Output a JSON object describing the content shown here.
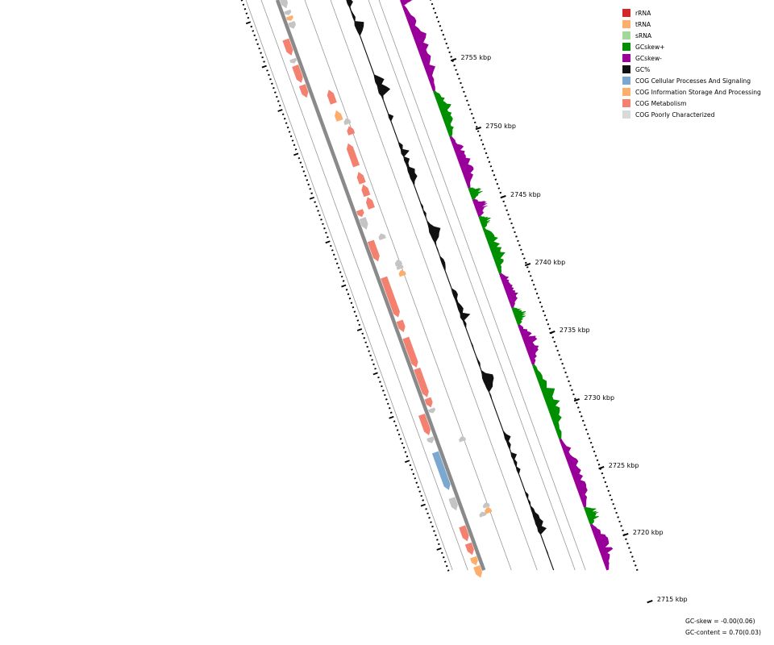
{
  "legend": [
    {
      "label": "rRNA",
      "color": "#d62728"
    },
    {
      "label": "tRNA",
      "color": "#fdae6b"
    },
    {
      "label": "sRNA",
      "color": "#a1d99b"
    },
    {
      "label": "GCskew+",
      "color": "#008f00"
    },
    {
      "label": "GCskew-",
      "color": "#990099"
    },
    {
      "label": "GC%",
      "color": "#111111"
    },
    {
      "label": "COG Cellular Processes And Signaling",
      "color": "#7ba8d1"
    },
    {
      "label": "COG Information Storage And Processing",
      "color": "#fdae6b"
    },
    {
      "label": "COG Metabolism",
      "color": "#f4806f"
    },
    {
      "label": "COG Poorly Characterized",
      "color": "#d9d9d9"
    }
  ],
  "ticks": [
    {
      "label": "2755 kbp"
    },
    {
      "label": "2750 kbp"
    },
    {
      "label": "2745 kbp"
    },
    {
      "label": "2740 kbp"
    },
    {
      "label": "2735 kbp"
    },
    {
      "label": "2730 kbp"
    },
    {
      "label": "2725 kbp"
    },
    {
      "label": "2720 kbp"
    },
    {
      "label": "2715 kbp"
    }
  ],
  "stats": {
    "gc_skew": "GC-skew = -0.00(0.06)",
    "gc_content": "GC-content = 0.70(0.03)"
  },
  "colors": {
    "backbone": "#8a8a8a",
    "track_line": "#999999",
    "gc": "#111111",
    "skew_pos": "#008f00",
    "skew_neg": "#990099",
    "metabolism": "#f4806f",
    "info": "#fdae6b",
    "cellular": "#7ba8d1",
    "poor": "#c4c4c4"
  },
  "features": [
    {
      "t": 0.0,
      "len": 0.018,
      "cat": "poor",
      "strand": "fwd",
      "track": 1
    },
    {
      "t": 0.022,
      "len": 0.008,
      "cat": "poor",
      "strand": "fwd",
      "track": 1
    },
    {
      "t": 0.032,
      "len": 0.008,
      "cat": "info",
      "strand": "fwd",
      "track": 1
    },
    {
      "t": 0.042,
      "len": 0.012,
      "cat": "poor",
      "strand": "fwd",
      "track": 1
    },
    {
      "t": 0.066,
      "len": 0.028,
      "cat": "metabolism",
      "strand": "fwd",
      "track": 0
    },
    {
      "t": 0.1,
      "len": 0.008,
      "cat": "poor",
      "strand": "fwd",
      "track": 0
    },
    {
      "t": 0.112,
      "len": 0.03,
      "cat": "metabolism",
      "strand": "fwd",
      "track": 0
    },
    {
      "t": 0.146,
      "len": 0.022,
      "cat": "metabolism",
      "strand": "fwd",
      "track": 0
    },
    {
      "t": 0.168,
      "len": 0.024,
      "cat": "metabolism",
      "strand": "rev",
      "track": 2
    },
    {
      "t": 0.204,
      "len": 0.018,
      "cat": "info",
      "strand": "rev",
      "track": 2
    },
    {
      "t": 0.222,
      "len": 0.01,
      "cat": "poor",
      "strand": "rev",
      "track": 3
    },
    {
      "t": 0.236,
      "len": 0.014,
      "cat": "metabolism",
      "strand": "rev",
      "track": 3
    },
    {
      "t": 0.262,
      "len": 0.04,
      "cat": "metabolism",
      "strand": "rev",
      "track": 2
    },
    {
      "t": 0.312,
      "len": 0.02,
      "cat": "metabolism",
      "strand": "rev",
      "track": 2
    },
    {
      "t": 0.334,
      "len": 0.02,
      "cat": "metabolism",
      "strand": "rev",
      "track": 2
    },
    {
      "t": 0.356,
      "len": 0.02,
      "cat": "metabolism",
      "strand": "rev",
      "track": 2
    },
    {
      "t": 0.372,
      "len": 0.012,
      "cat": "metabolism",
      "strand": "fwd",
      "track": 1
    },
    {
      "t": 0.386,
      "len": 0.02,
      "cat": "poor",
      "strand": "fwd",
      "track": 1
    },
    {
      "t": 0.42,
      "len": 0.01,
      "cat": "poor",
      "strand": "rev",
      "track": 2
    },
    {
      "t": 0.426,
      "len": 0.036,
      "cat": "metabolism",
      "strand": "fwd",
      "track": 1
    },
    {
      "t": 0.47,
      "len": 0.01,
      "cat": "poor",
      "strand": "rev",
      "track": 3
    },
    {
      "t": 0.478,
      "len": 0.008,
      "cat": "poor",
      "strand": "rev",
      "track": 3
    },
    {
      "t": 0.488,
      "len": 0.01,
      "cat": "info",
      "strand": "rev",
      "track": 3
    },
    {
      "t": 0.49,
      "len": 0.07,
      "cat": "metabolism",
      "strand": "fwd",
      "track": 1
    },
    {
      "t": 0.566,
      "len": 0.02,
      "cat": "metabolism",
      "strand": "fwd",
      "track": 1
    },
    {
      "t": 0.596,
      "len": 0.052,
      "cat": "metabolism",
      "strand": "fwd",
      "track": 1
    },
    {
      "t": 0.65,
      "len": 0.05,
      "cat": "metabolism",
      "strand": "fwd",
      "track": 1
    },
    {
      "t": 0.702,
      "len": 0.016,
      "cat": "metabolism",
      "strand": "fwd",
      "track": 1
    },
    {
      "t": 0.72,
      "len": 0.008,
      "cat": "poor",
      "strand": "fwd",
      "track": 1
    },
    {
      "t": 0.724,
      "len": 0.036,
      "cat": "metabolism",
      "strand": "fwd",
      "track": 0
    },
    {
      "t": 0.764,
      "len": 0.01,
      "cat": "poor",
      "strand": "fwd",
      "track": 0
    },
    {
      "t": 0.78,
      "len": 0.008,
      "cat": "poor",
      "strand": "rev",
      "track": 3
    },
    {
      "t": 0.79,
      "len": 0.066,
      "cat": "cellular",
      "strand": "fwd",
      "track": 0
    },
    {
      "t": 0.87,
      "len": 0.022,
      "cat": "poor",
      "strand": "fwd",
      "track": 0
    },
    {
      "t": 0.896,
      "len": 0.008,
      "cat": "poor",
      "strand": "rev",
      "track": 3
    },
    {
      "t": 0.904,
      "len": 0.01,
      "cat": "info",
      "strand": "rev",
      "track": 3
    },
    {
      "t": 0.908,
      "len": 0.008,
      "cat": "poor",
      "strand": "rev",
      "track": 2
    },
    {
      "t": 0.92,
      "len": 0.026,
      "cat": "metabolism",
      "strand": "fwd",
      "track": 0
    },
    {
      "t": 0.95,
      "len": 0.02,
      "cat": "metabolism",
      "strand": "fwd",
      "track": 0
    },
    {
      "t": 0.974,
      "len": 0.014,
      "cat": "info",
      "strand": "fwd",
      "track": 0
    },
    {
      "t": 0.99,
      "len": 0.02,
      "cat": "info",
      "strand": "fwd",
      "track": 0
    }
  ]
}
